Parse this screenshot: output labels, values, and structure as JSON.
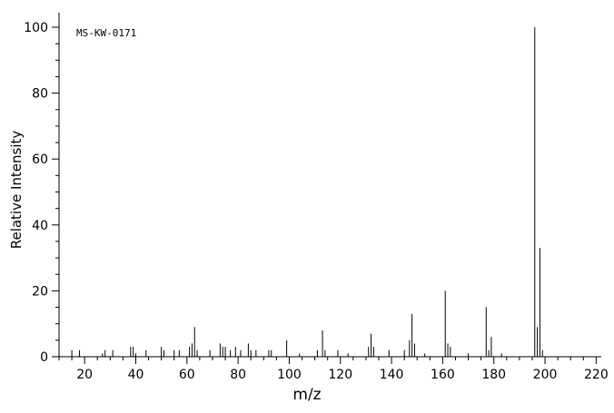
{
  "figure": {
    "annotation": "MS-KW-0171",
    "xlabel": "m/z",
    "ylabel": "Relative Intensity"
  },
  "colors": {
    "background": "#ffffff",
    "axis": "#000000",
    "peak": "#000000",
    "text": "#000000"
  },
  "chart_data": {
    "type": "bar",
    "subtype": "mass-spectrum",
    "title": "MS-KW-0171",
    "xlabel": "m/z",
    "ylabel": "Relative Intensity",
    "xlim": [
      10,
      222
    ],
    "ylim": [
      0,
      100
    ],
    "x_major_ticks": [
      20,
      40,
      60,
      80,
      100,
      120,
      140,
      160,
      180,
      200,
      220
    ],
    "x_minor_step": 5,
    "y_major_ticks": [
      0,
      20,
      40,
      60,
      80,
      100
    ],
    "y_minor_step": 5,
    "grid": false,
    "legend": false,
    "peaks": [
      [
        15,
        2
      ],
      [
        18,
        2
      ],
      [
        27,
        1
      ],
      [
        28,
        2
      ],
      [
        31,
        2
      ],
      [
        38,
        3
      ],
      [
        39,
        3
      ],
      [
        40,
        1
      ],
      [
        44,
        2
      ],
      [
        50,
        3
      ],
      [
        51,
        2
      ],
      [
        55,
        2
      ],
      [
        57,
        2
      ],
      [
        61,
        3
      ],
      [
        62,
        4
      ],
      [
        63,
        9
      ],
      [
        64,
        2
      ],
      [
        69,
        2
      ],
      [
        73,
        4
      ],
      [
        74,
        3
      ],
      [
        75,
        3
      ],
      [
        77,
        2
      ],
      [
        79,
        3
      ],
      [
        81,
        2
      ],
      [
        84,
        4
      ],
      [
        85,
        2
      ],
      [
        87,
        2
      ],
      [
        92,
        2
      ],
      [
        93,
        2
      ],
      [
        99,
        5
      ],
      [
        104,
        1
      ],
      [
        111,
        2
      ],
      [
        113,
        8
      ],
      [
        114,
        2
      ],
      [
        119,
        2
      ],
      [
        123,
        1
      ],
      [
        131,
        3
      ],
      [
        132,
        7
      ],
      [
        133,
        3
      ],
      [
        139,
        2
      ],
      [
        145,
        2
      ],
      [
        147,
        5
      ],
      [
        148,
        13
      ],
      [
        149,
        4
      ],
      [
        153,
        1
      ],
      [
        161,
        20
      ],
      [
        162,
        4
      ],
      [
        163,
        3
      ],
      [
        170,
        1
      ],
      [
        177,
        15
      ],
      [
        178,
        2
      ],
      [
        179,
        6
      ],
      [
        183,
        1
      ],
      [
        196,
        100
      ],
      [
        197,
        9
      ],
      [
        198,
        33
      ],
      [
        199,
        2
      ]
    ]
  }
}
